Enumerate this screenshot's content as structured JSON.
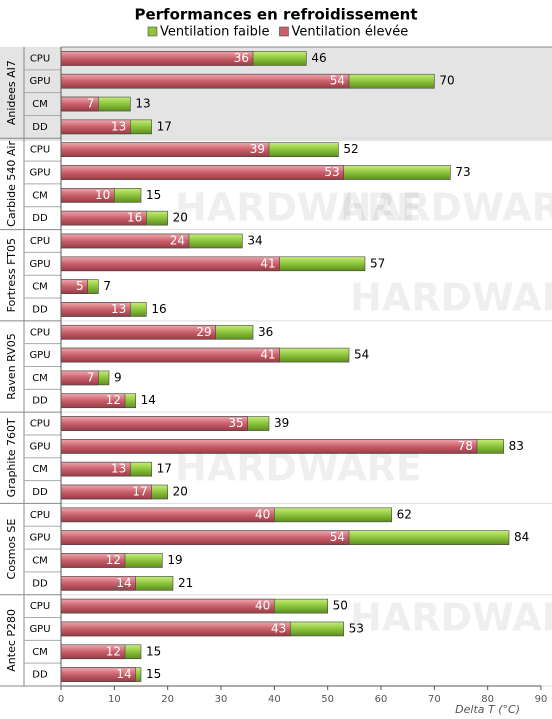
{
  "chart_data": {
    "type": "bar",
    "orientation": "horizontal",
    "overlap": true,
    "title": "Performances en refroidissement",
    "groups": [
      "Anidees AI7",
      "Carbide 540 Air",
      "Fortress FT05",
      "Raven RV05",
      "Graphite 760T",
      "Cosmos SE",
      "Antec P280"
    ],
    "subcategories": [
      "CPU",
      "GPU",
      "CM",
      "DD"
    ],
    "series": [
      {
        "name": "Ventilation faible",
        "color": "#8cc43c",
        "values": [
          46,
          70,
          13,
          17,
          52,
          73,
          15,
          20,
          34,
          57,
          7,
          16,
          36,
          54,
          9,
          14,
          39,
          83,
          17,
          20,
          62,
          84,
          19,
          21,
          50,
          53,
          15,
          15
        ]
      },
      {
        "name": "Ventilation élevée",
        "color": "#c8606b",
        "values": [
          36,
          54,
          7,
          13,
          39,
          53,
          10,
          16,
          24,
          41,
          5,
          13,
          29,
          41,
          7,
          12,
          35,
          78,
          13,
          17,
          40,
          54,
          12,
          14,
          40,
          43,
          12,
          14
        ]
      }
    ],
    "xlim": [
      0,
      90
    ],
    "xticks": [
      0,
      10,
      20,
      30,
      40,
      50,
      60,
      70,
      80,
      90
    ],
    "x_label": "Delta T (°C)",
    "watermark": "HARDWARE"
  }
}
